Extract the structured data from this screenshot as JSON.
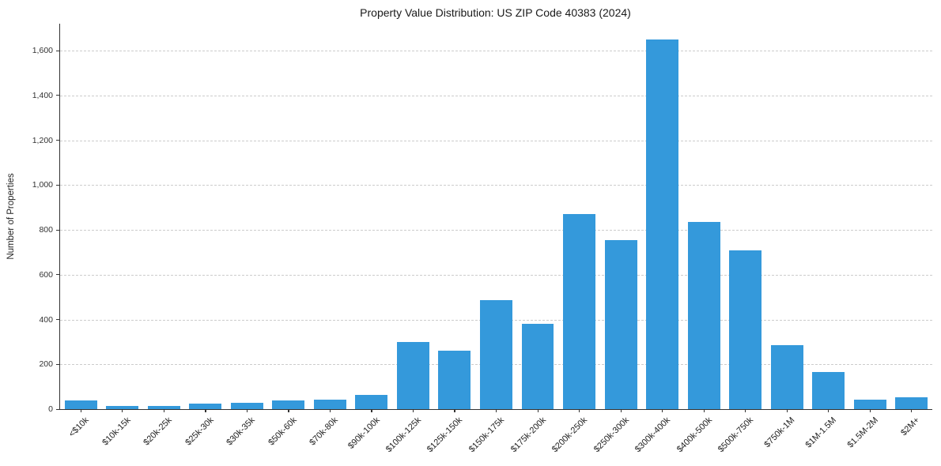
{
  "chart_data": {
    "type": "bar",
    "title": "Property Value Distribution: US ZIP Code 40383 (2024)",
    "xlabel": "",
    "ylabel": "Number of Properties",
    "categories": [
      "<$10k",
      "$10k-15k",
      "$20k-25k",
      "$25k-30k",
      "$30k-35k",
      "$50k-60k",
      "$70k-80k",
      "$90k-100k",
      "$100k-125k",
      "$125k-150k",
      "$150k-175k",
      "$175k-200k",
      "$200k-250k",
      "$250k-300k",
      "$300k-400k",
      "$400k-500k",
      "$500k-750k",
      "$750k-1M",
      "$1M-1.5M",
      "$1.5M-2M",
      "$2M+"
    ],
    "values": [
      40,
      15,
      15,
      25,
      28,
      38,
      42,
      62,
      300,
      260,
      485,
      380,
      870,
      755,
      1650,
      835,
      710,
      285,
      165,
      42,
      52
    ],
    "ylim": [
      0,
      1720
    ],
    "yticks": [
      0,
      200,
      400,
      600,
      800,
      1000,
      1200,
      1400,
      1600
    ],
    "ytick_labels": [
      "0",
      "200",
      "400",
      "600",
      "800",
      "1,000",
      "1,200",
      "1,400",
      "1,600"
    ],
    "bar_color": "#3499db",
    "grid": "y-dashed",
    "legend": "none"
  }
}
